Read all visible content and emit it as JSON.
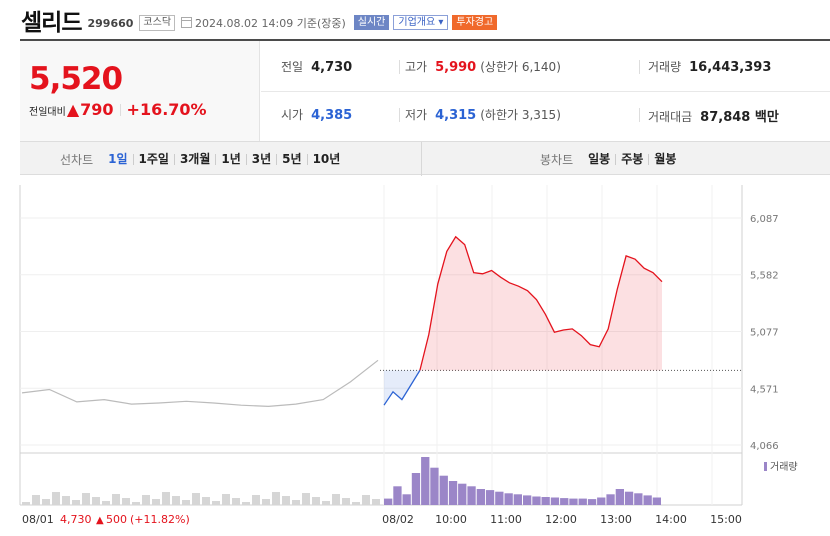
{
  "header": {
    "name": "셀리드",
    "code": "299660",
    "market": "코스닥",
    "datetime": "2024.08.02 14:09 기준(장중)",
    "realtime_label": "실시간",
    "company_overview_label": "기업개요",
    "warning_label": "투자경고"
  },
  "price": {
    "current": "5,520",
    "change_label": "전일대비",
    "change_amount": "790",
    "change_pct": "+16.70%"
  },
  "info": {
    "prev_close_label": "전일",
    "prev_close": "4,730",
    "high_label": "고가",
    "high": "5,990",
    "upper_limit": "(상한가 6,140)",
    "volume_label": "거래량",
    "volume": "16,443,393",
    "open_label": "시가",
    "open": "4,385",
    "low_label": "저가",
    "low": "4,315",
    "lower_limit": "(하한가 3,315)",
    "amount_label": "거래대금",
    "amount": "87,848 백만"
  },
  "tabs": {
    "line_label": "선차트",
    "line_periods": [
      "1일",
      "1주일",
      "3개월",
      "1년",
      "3년",
      "5년",
      "10년"
    ],
    "active_period": "1일",
    "candle_label": "봉차트",
    "candle_periods": [
      "일봉",
      "주봉",
      "월봉"
    ]
  },
  "colors": {
    "up": "#e4131d",
    "down": "#2b63d4",
    "prev": "#bbbbbb",
    "volume": "#9b86c8"
  },
  "chart_data": {
    "type": "line",
    "y_ticks": [
      "6,087",
      "5,582",
      "5,077",
      "4,571",
      "4,066"
    ],
    "ylim": [
      4066,
      6087
    ],
    "baseline": 4730,
    "x_ticks": [
      "08/02",
      "10:00",
      "11:00",
      "12:00",
      "13:00",
      "14:00",
      "15:00"
    ],
    "legend": "거래량",
    "prev_day": {
      "label": "08/01",
      "close": "4,730",
      "change": "500",
      "change_pct": "(+11.82%)"
    },
    "series": [
      {
        "x": [
          "08/01 09:00",
          "08/01 09:30",
          "08/01 10:00",
          "08/01 10:30",
          "08/01 11:00",
          "08/01 11:30",
          "08/01 12:00",
          "08/01 12:30",
          "08/01 13:00",
          "08/01 13:30",
          "08/01 14:00",
          "08/01 14:30",
          "08/01 15:00",
          "08/01 15:20"
        ],
        "values": [
          4530,
          4560,
          4450,
          4470,
          4430,
          4440,
          4455,
          4440,
          4420,
          4410,
          4430,
          4470,
          4630,
          4820
        ]
      },
      {
        "x": [
          "09:00",
          "09:10",
          "09:20",
          "09:30",
          "09:40",
          "09:50",
          "10:00",
          "10:10",
          "10:20",
          "10:30",
          "10:40",
          "10:50",
          "11:00",
          "11:10",
          "11:20",
          "11:30",
          "11:40",
          "11:50",
          "12:00",
          "12:10",
          "12:20",
          "12:30",
          "12:40",
          "12:50",
          "13:00",
          "13:10",
          "13:20",
          "13:30",
          "13:40",
          "13:50",
          "14:00",
          "14:09"
        ],
        "values": [
          4420,
          4540,
          4470,
          4600,
          4730,
          5050,
          5500,
          5790,
          5920,
          5850,
          5600,
          5590,
          5620,
          5560,
          5510,
          5480,
          5440,
          5360,
          5230,
          5070,
          5090,
          5100,
          5040,
          4960,
          4940,
          5100,
          5450,
          5750,
          5720,
          5640,
          5600,
          5520
        ]
      }
    ],
    "volume": [
      12,
      35,
      20,
      60,
      90,
      70,
      55,
      45,
      40,
      35,
      30,
      28,
      25,
      22,
      20,
      18,
      16,
      15,
      14,
      13,
      12,
      12,
      11,
      14,
      20,
      30,
      25,
      22,
      18,
      14
    ]
  }
}
